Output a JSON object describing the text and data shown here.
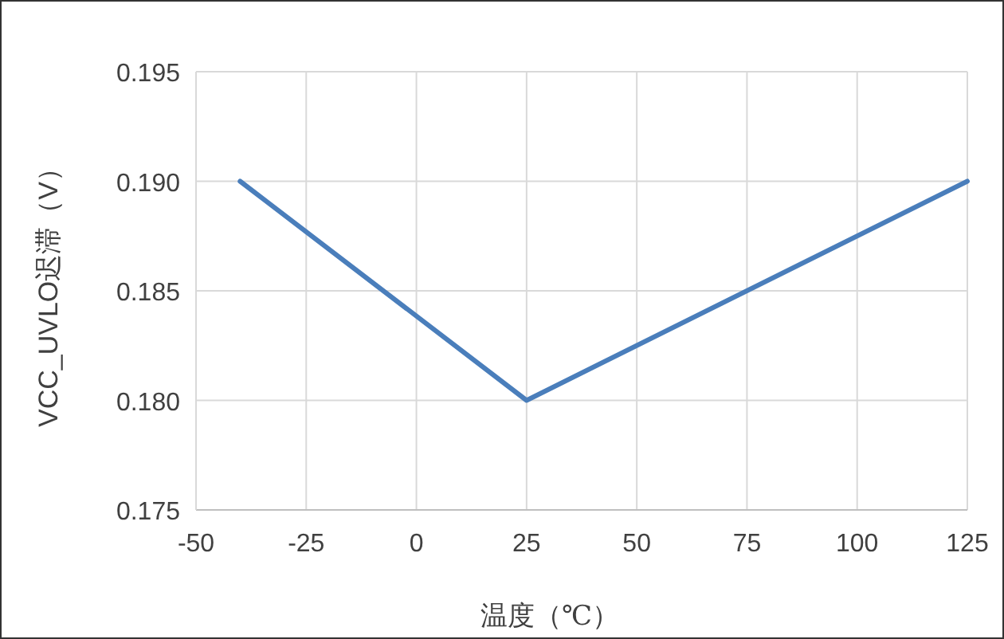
{
  "chart_data": {
    "type": "line",
    "xlabel": "温度（℃）",
    "ylabel": "VCC_UVLO迟滞（V）",
    "x": [
      -40,
      25,
      125
    ],
    "series": [
      {
        "color": "#4a7ebb",
        "values": [
          0.19,
          0.18,
          0.19
        ]
      }
    ],
    "xlim": [
      -50,
      125
    ],
    "xticks": [
      -50,
      -25,
      0,
      25,
      50,
      75,
      100,
      125
    ],
    "ylim": [
      0.175,
      0.195
    ],
    "yticks": [
      {
        "value": 0.175,
        "label": "0.175"
      },
      {
        "value": 0.18,
        "label": "0.180"
      },
      {
        "value": 0.185,
        "label": "0.185"
      },
      {
        "value": 0.19,
        "label": "0.190"
      },
      {
        "value": 0.195,
        "label": "0.195"
      }
    ],
    "grid": true
  }
}
